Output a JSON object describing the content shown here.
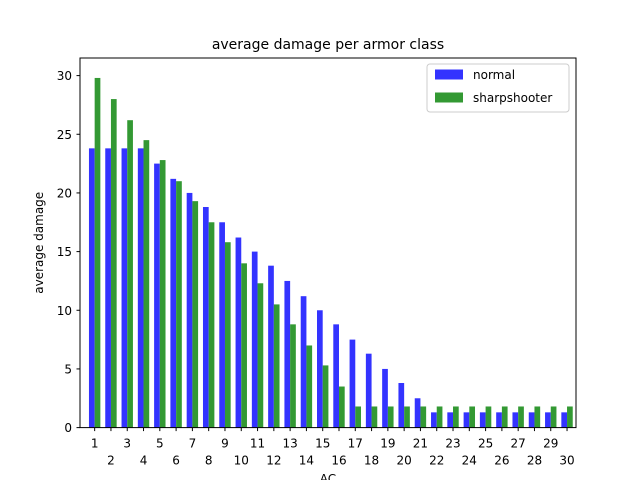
{
  "chart_data": {
    "type": "bar",
    "title": "average damage per armor class",
    "xlabel": "AC",
    "ylabel": "average damage",
    "categories": [
      1,
      2,
      3,
      4,
      5,
      6,
      7,
      8,
      9,
      10,
      11,
      12,
      13,
      14,
      15,
      16,
      17,
      18,
      19,
      20,
      21,
      22,
      23,
      24,
      25,
      26,
      27,
      28,
      29,
      30
    ],
    "series": [
      {
        "name": "normal",
        "color": "#3333ff",
        "values": [
          23.8,
          23.8,
          23.8,
          23.8,
          22.5,
          21.2,
          20.0,
          18.8,
          17.5,
          16.2,
          15.0,
          13.8,
          12.5,
          11.2,
          10.0,
          8.8,
          7.5,
          6.3,
          5.0,
          3.8,
          2.5,
          1.3,
          1.3,
          1.3,
          1.3,
          1.3,
          1.3,
          1.3,
          1.3,
          1.3
        ]
      },
      {
        "name": "sharpshooter",
        "color": "#339933",
        "values": [
          29.8,
          28.0,
          26.2,
          24.5,
          22.8,
          21.0,
          19.3,
          17.5,
          15.8,
          14.0,
          12.3,
          10.5,
          8.8,
          7.0,
          5.3,
          3.5,
          1.8,
          1.8,
          1.8,
          1.8,
          1.8,
          1.8,
          1.8,
          1.8,
          1.8,
          1.8,
          1.8,
          1.8,
          1.8,
          1.8
        ]
      }
    ],
    "ylim": [
      0,
      31.5
    ],
    "yticks": [
      0,
      5,
      10,
      15,
      20,
      25,
      30
    ],
    "legend_position": "top-right",
    "grid": false
  }
}
